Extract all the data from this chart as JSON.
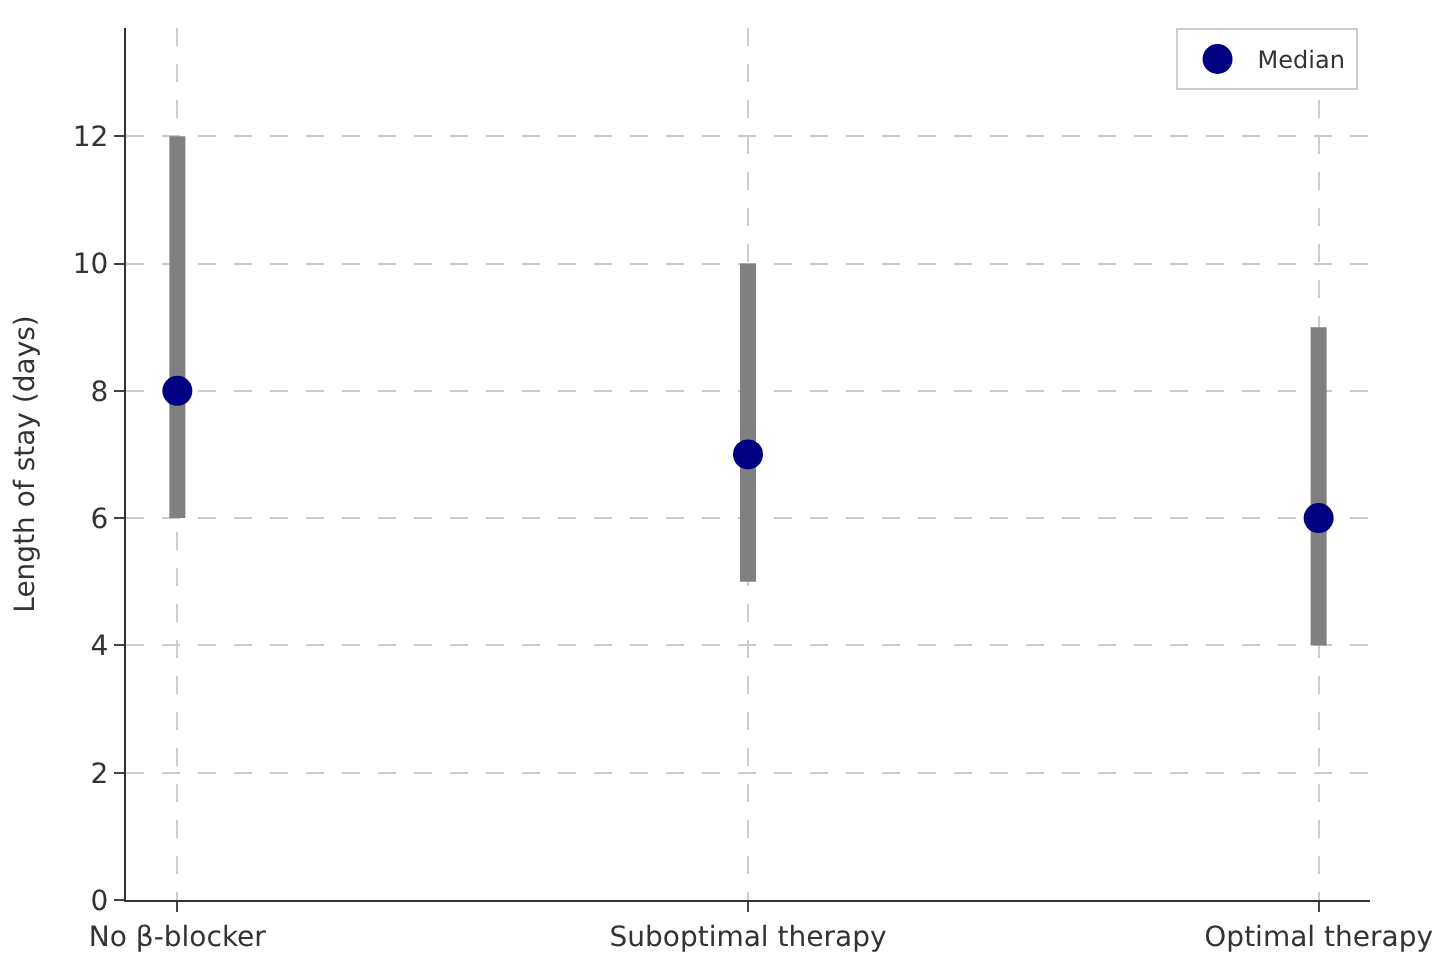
{
  "chart_data": {
    "type": "scatter",
    "ylabel": "Length of stay (days)",
    "categories": [
      "No β-blocker",
      "Suboptimal therapy",
      "Optimal therapy"
    ],
    "series": [
      {
        "name": "Median",
        "color": "#000080",
        "values": [
          8,
          7,
          6
        ],
        "errors": [
          [
            6,
            12
          ],
          [
            5,
            10
          ],
          [
            4,
            9
          ]
        ]
      }
    ],
    "ylim": [
      0,
      13.7
    ],
    "yticks": [
      0,
      2,
      4,
      6,
      8,
      10,
      12
    ],
    "grid": true,
    "legend": "top right",
    "marker": "circle"
  }
}
